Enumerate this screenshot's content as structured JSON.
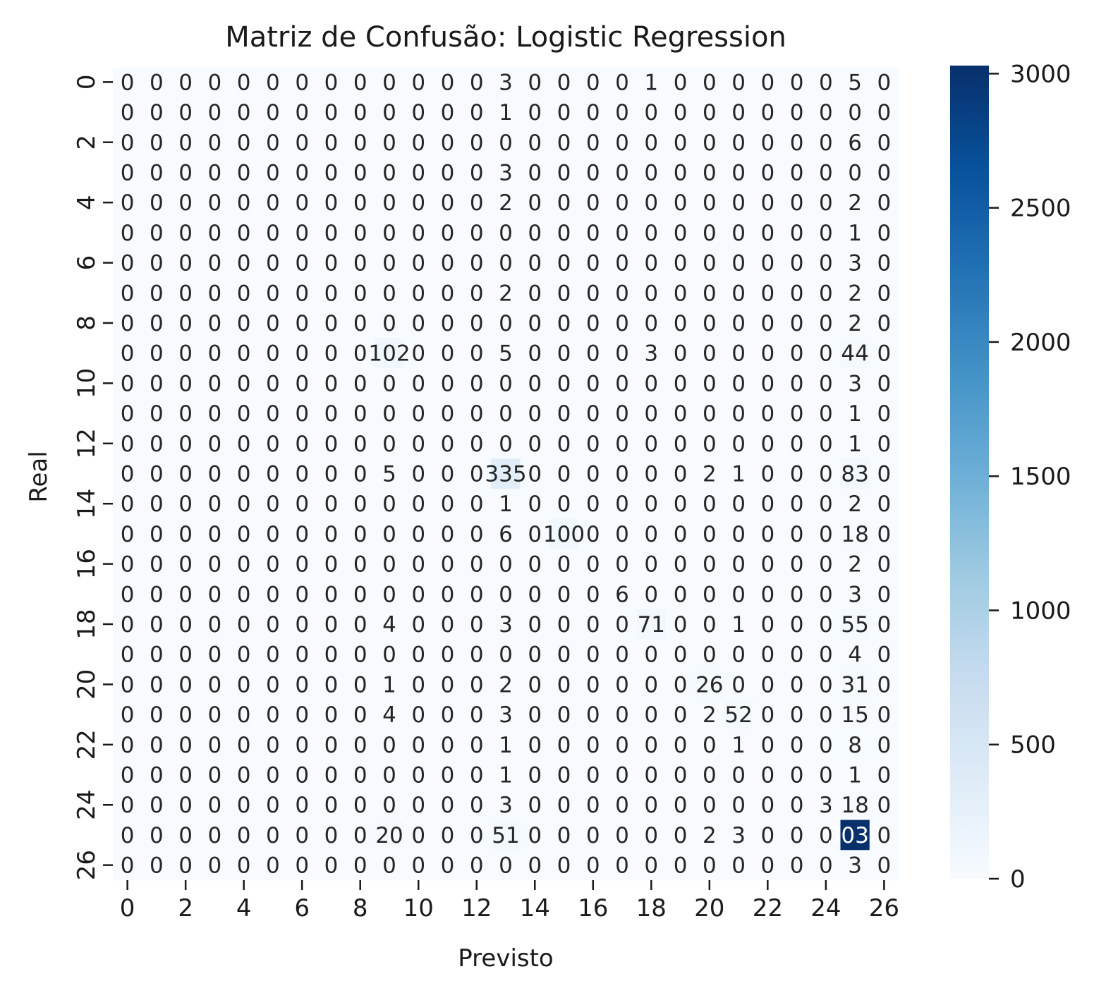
{
  "chart_data": {
    "type": "heatmap",
    "title": "Matriz de Confusão: Logistic Regression",
    "xlabel": "Previsto",
    "ylabel": "Real",
    "x_tick_labels": [
      "0",
      "2",
      "4",
      "6",
      "8",
      "10",
      "12",
      "14",
      "16",
      "18",
      "20",
      "22",
      "24",
      "26"
    ],
    "y_tick_labels": [
      "0",
      "2",
      "4",
      "6",
      "8",
      "10",
      "12",
      "14",
      "16",
      "18",
      "20",
      "22",
      "24",
      "26"
    ],
    "colorbar": {
      "ticks": [
        "0",
        "500",
        "1000",
        "1500",
        "2000",
        "2500",
        "3000"
      ],
      "vmin": 0,
      "vmax": 3030,
      "colormap": "Blues"
    },
    "matrix": [
      [
        0,
        0,
        0,
        0,
        0,
        0,
        0,
        0,
        0,
        0,
        0,
        0,
        0,
        3,
        0,
        0,
        0,
        0,
        1,
        0,
        0,
        0,
        0,
        0,
        0,
        5,
        0
      ],
      [
        0,
        0,
        0,
        0,
        0,
        0,
        0,
        0,
        0,
        0,
        0,
        0,
        0,
        1,
        0,
        0,
        0,
        0,
        0,
        0,
        0,
        0,
        0,
        0,
        0,
        0,
        0
      ],
      [
        0,
        0,
        0,
        0,
        0,
        0,
        0,
        0,
        0,
        0,
        0,
        0,
        0,
        0,
        0,
        0,
        0,
        0,
        0,
        0,
        0,
        0,
        0,
        0,
        0,
        6,
        0
      ],
      [
        0,
        0,
        0,
        0,
        0,
        0,
        0,
        0,
        0,
        0,
        0,
        0,
        0,
        3,
        0,
        0,
        0,
        0,
        0,
        0,
        0,
        0,
        0,
        0,
        0,
        0,
        0
      ],
      [
        0,
        0,
        0,
        0,
        0,
        0,
        0,
        0,
        0,
        0,
        0,
        0,
        0,
        2,
        0,
        0,
        0,
        0,
        0,
        0,
        0,
        0,
        0,
        0,
        0,
        2,
        0
      ],
      [
        0,
        0,
        0,
        0,
        0,
        0,
        0,
        0,
        0,
        0,
        0,
        0,
        0,
        0,
        0,
        0,
        0,
        0,
        0,
        0,
        0,
        0,
        0,
        0,
        0,
        1,
        0
      ],
      [
        0,
        0,
        0,
        0,
        0,
        0,
        0,
        0,
        0,
        0,
        0,
        0,
        0,
        0,
        0,
        0,
        0,
        0,
        0,
        0,
        0,
        0,
        0,
        0,
        0,
        3,
        0
      ],
      [
        0,
        0,
        0,
        0,
        0,
        0,
        0,
        0,
        0,
        0,
        0,
        0,
        0,
        2,
        0,
        0,
        0,
        0,
        0,
        0,
        0,
        0,
        0,
        0,
        0,
        2,
        0
      ],
      [
        0,
        0,
        0,
        0,
        0,
        0,
        0,
        0,
        0,
        0,
        0,
        0,
        0,
        0,
        0,
        0,
        0,
        0,
        0,
        0,
        0,
        0,
        0,
        0,
        0,
        2,
        0
      ],
      [
        0,
        0,
        0,
        0,
        0,
        0,
        0,
        0,
        0,
        102,
        0,
        0,
        0,
        5,
        0,
        0,
        0,
        0,
        3,
        0,
        0,
        0,
        0,
        0,
        0,
        44,
        0
      ],
      [
        0,
        0,
        0,
        0,
        0,
        0,
        0,
        0,
        0,
        0,
        0,
        0,
        0,
        0,
        0,
        0,
        0,
        0,
        0,
        0,
        0,
        0,
        0,
        0,
        0,
        3,
        0
      ],
      [
        0,
        0,
        0,
        0,
        0,
        0,
        0,
        0,
        0,
        0,
        0,
        0,
        0,
        0,
        0,
        0,
        0,
        0,
        0,
        0,
        0,
        0,
        0,
        0,
        0,
        1,
        0
      ],
      [
        0,
        0,
        0,
        0,
        0,
        0,
        0,
        0,
        0,
        0,
        0,
        0,
        0,
        0,
        0,
        0,
        0,
        0,
        0,
        0,
        0,
        0,
        0,
        0,
        0,
        1,
        0
      ],
      [
        0,
        0,
        0,
        0,
        0,
        0,
        0,
        0,
        0,
        5,
        0,
        0,
        0,
        335,
        0,
        0,
        0,
        0,
        0,
        0,
        2,
        1,
        0,
        0,
        0,
        83,
        0
      ],
      [
        0,
        0,
        0,
        0,
        0,
        0,
        0,
        0,
        0,
        0,
        0,
        0,
        0,
        1,
        0,
        0,
        0,
        0,
        0,
        0,
        0,
        0,
        0,
        0,
        0,
        2,
        0
      ],
      [
        0,
        0,
        0,
        0,
        0,
        0,
        0,
        0,
        0,
        0,
        0,
        0,
        0,
        6,
        0,
        100,
        0,
        0,
        0,
        0,
        0,
        0,
        0,
        0,
        0,
        18,
        0
      ],
      [
        0,
        0,
        0,
        0,
        0,
        0,
        0,
        0,
        0,
        0,
        0,
        0,
        0,
        0,
        0,
        0,
        0,
        0,
        0,
        0,
        0,
        0,
        0,
        0,
        0,
        2,
        0
      ],
      [
        0,
        0,
        0,
        0,
        0,
        0,
        0,
        0,
        0,
        0,
        0,
        0,
        0,
        0,
        0,
        0,
        0,
        6,
        0,
        0,
        0,
        0,
        0,
        0,
        0,
        3,
        0
      ],
      [
        0,
        0,
        0,
        0,
        0,
        0,
        0,
        0,
        0,
        4,
        0,
        0,
        0,
        3,
        0,
        0,
        0,
        0,
        71,
        0,
        0,
        1,
        0,
        0,
        0,
        55,
        0
      ],
      [
        0,
        0,
        0,
        0,
        0,
        0,
        0,
        0,
        0,
        0,
        0,
        0,
        0,
        0,
        0,
        0,
        0,
        0,
        0,
        0,
        0,
        0,
        0,
        0,
        0,
        4,
        0
      ],
      [
        0,
        0,
        0,
        0,
        0,
        0,
        0,
        0,
        0,
        1,
        0,
        0,
        0,
        2,
        0,
        0,
        0,
        0,
        0,
        0,
        26,
        0,
        0,
        0,
        0,
        31,
        0
      ],
      [
        0,
        0,
        0,
        0,
        0,
        0,
        0,
        0,
        0,
        4,
        0,
        0,
        0,
        3,
        0,
        0,
        0,
        0,
        0,
        0,
        2,
        52,
        0,
        0,
        0,
        15,
        0
      ],
      [
        0,
        0,
        0,
        0,
        0,
        0,
        0,
        0,
        0,
        0,
        0,
        0,
        0,
        1,
        0,
        0,
        0,
        0,
        0,
        0,
        0,
        1,
        0,
        0,
        0,
        8,
        0
      ],
      [
        0,
        0,
        0,
        0,
        0,
        0,
        0,
        0,
        0,
        0,
        0,
        0,
        0,
        1,
        0,
        0,
        0,
        0,
        0,
        0,
        0,
        0,
        0,
        0,
        0,
        1,
        0
      ],
      [
        0,
        0,
        0,
        0,
        0,
        0,
        0,
        0,
        0,
        0,
        0,
        0,
        0,
        3,
        0,
        0,
        0,
        0,
        0,
        0,
        0,
        0,
        0,
        0,
        3,
        18,
        0
      ],
      [
        0,
        0,
        0,
        0,
        0,
        0,
        0,
        0,
        0,
        20,
        0,
        0,
        0,
        51,
        0,
        0,
        0,
        0,
        0,
        0,
        2,
        3,
        0,
        0,
        0,
        3030,
        0
      ],
      [
        0,
        0,
        0,
        0,
        0,
        0,
        0,
        0,
        0,
        0,
        0,
        0,
        0,
        0,
        0,
        0,
        0,
        0,
        0,
        0,
        0,
        0,
        0,
        0,
        0,
        3,
        0
      ]
    ],
    "grid": false,
    "legend": "colorbar-right"
  }
}
